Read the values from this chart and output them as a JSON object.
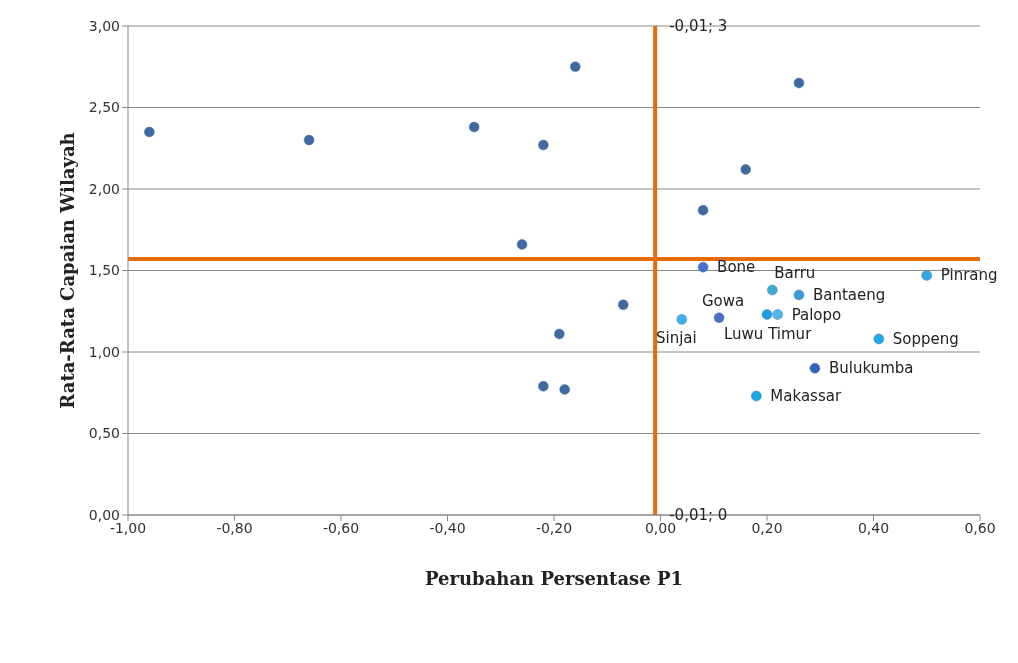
{
  "chart_data": {
    "type": "scatter",
    "xlabel": "Perubahan Persentase P1",
    "ylabel": "Rata-Rata Capaian Wilayah",
    "x": [
      -0.96,
      -0.66,
      -0.35,
      -0.22,
      -0.16,
      -0.26,
      -0.07,
      -0.19,
      -0.22,
      -0.18,
      0.26,
      0.16,
      0.08,
      0.08,
      0.21,
      0.26,
      0.5,
      0.04,
      0.11,
      0.2,
      0.22,
      0.41,
      0.29,
      0.18
    ],
    "values": [
      2.35,
      2.3,
      2.38,
      2.27,
      2.75,
      1.66,
      1.29,
      1.11,
      0.79,
      0.77,
      2.65,
      2.12,
      1.87,
      1.52,
      1.38,
      1.35,
      1.47,
      1.2,
      1.21,
      1.23,
      1.23,
      1.08,
      0.9,
      0.73
    ],
    "colors": [
      "#3e6aa0",
      "#3e6aa0",
      "#3e6aa0",
      "#3e6aa0",
      "#3e6aa0",
      "#3e6aa0",
      "#3e6aa0",
      "#3e6aa0",
      "#3e6aa0",
      "#3e6aa0",
      "#3e6aa0",
      "#3e6aa0",
      "#3e6aa0",
      "#4a6fd0",
      "#3aaed0",
      "#3a9ad8",
      "#33a8e0",
      "#3ab0e8",
      "#4a70c8",
      "#1ea0e0",
      "#50b8e8",
      "#20a8e0",
      "#3060c0",
      "#1aa8e0"
    ],
    "annotations": [
      {
        "text": "Bone",
        "x": 0.08,
        "y": 1.52
      },
      {
        "text": "Barru",
        "x": 0.21,
        "y": 1.38
      },
      {
        "text": "Bantaeng",
        "x": 0.26,
        "y": 1.35
      },
      {
        "text": "Pinrang",
        "x": 0.5,
        "y": 1.47
      },
      {
        "text": "Gowa",
        "x": 0.11,
        "y": 1.21
      },
      {
        "text": "Luwu Timur",
        "x": 0.2,
        "y": 1.23
      },
      {
        "text": "Sinjai",
        "x": 0.04,
        "y": 1.2
      },
      {
        "text": "Palopo",
        "x": 0.22,
        "y": 1.23
      },
      {
        "text": "Soppeng",
        "x": 0.41,
        "y": 1.08
      },
      {
        "text": "Bulukumba",
        "x": 0.29,
        "y": 0.9
      },
      {
        "text": "Makassar",
        "x": 0.18,
        "y": 0.73
      },
      {
        "text": "-0,01; 3",
        "x": -0.01,
        "y": 3
      },
      {
        "text": "-0,01; 0",
        "x": -0.01,
        "y": 0
      }
    ],
    "ref_lines": [
      {
        "axis": "x",
        "value": -0.01,
        "color": "#e46c0a"
      },
      {
        "axis": "y",
        "value": 1.57,
        "color": "#e46c0a"
      }
    ],
    "xlim": [
      -1,
      0.6
    ],
    "xticks": [
      {
        "value": -1,
        "label": "-1,00"
      },
      {
        "value": -0.8,
        "label": "-0,80"
      },
      {
        "value": -0.6,
        "label": "-0,60"
      },
      {
        "value": -0.4,
        "label": "-0,40"
      },
      {
        "value": -0.2,
        "label": "-0,20"
      },
      {
        "value": 0,
        "label": "0,00"
      },
      {
        "value": 0.2,
        "label": "0,20"
      },
      {
        "value": 0.4,
        "label": "0,40"
      },
      {
        "value": 0.6,
        "label": "0,60"
      }
    ],
    "ylim": [
      0,
      3
    ],
    "yticks": [
      {
        "value": 0,
        "label": "0,00"
      },
      {
        "value": 0.5,
        "label": "0,50"
      },
      {
        "value": 1,
        "label": "1,00"
      },
      {
        "value": 1.5,
        "label": "1,50"
      },
      {
        "value": 2,
        "label": "2,00"
      },
      {
        "value": 2.5,
        "label": "2,50"
      },
      {
        "value": 3,
        "label": "3,00"
      }
    ],
    "grid": "y",
    "marker": "circle"
  }
}
